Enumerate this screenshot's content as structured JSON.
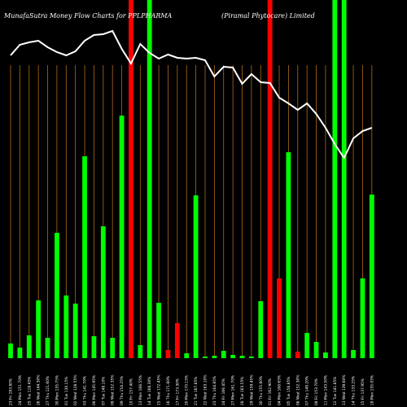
{
  "chart_data": {
    "type": "bar",
    "title_left": "MunafaSutra  Money Flow  Charts for PPLPHARMA",
    "title_right": "(Piramal Phytocare)  Limited",
    "background": "#000000",
    "colors": {
      "up": "#00ff00",
      "down": "#ff0000",
      "line": "#ffffff",
      "grid": "#b26a1a"
    },
    "x_labels": [
      "23 Fri 193.80%",
      "24 Mon 151.70%",
      "25 Tue 118.45%",
      "26 Wed 144.30%",
      "27 Thu 121.60%",
      "30 Mon 135.75%",
      "01 Tue 130.15%",
      "02 Wed 128.55%",
      "03 Thu 141.70%",
      "06 Mon 145.95%",
      "07 Tue 148.10%",
      "08 Wed 152.35%",
      "09 Thu 154.25%",
      "10 Fri 157.40%",
      "13 Mon 168.55%",
      "14 Tue 168.30%",
      "15 Wed 172.45%",
      "16 Thu 171.80%",
      "17 Fri 173.30%",
      "20 Mon 170.15%",
      "21 Tue 167.85%",
      "22 Wed 163.10%",
      "23 Thu 164.85%",
      "24 Fri 166.45%",
      "27 Mon 161.70%",
      "28 Tue 163.55%",
      "29 Wed 159.45%",
      "30 Thu 155.80%",
      "01 Fri 162.90%",
      "04 Mon 168.65%",
      "05 Tue 156.85%",
      "06 Wed 152.30%",
      "07 Thu 149.20%",
      "08 Fri 153.70%",
      "11 Mon 143.50%",
      "12 Tue 141.85%",
      "13 Wed 139.60%",
      "14 Thu 133.25%",
      "15 Fri 137.95%",
      "18 Mon 135.05%"
    ],
    "bar_values": [
      18,
      13,
      28,
      71,
      25,
      154,
      77,
      67,
      248,
      27,
      162,
      25,
      298,
      440,
      16,
      440,
      68,
      10,
      43,
      6,
      200,
      2,
      3,
      9,
      4,
      3,
      2,
      70,
      440,
      98,
      253,
      8,
      31,
      20,
      7,
      440,
      440,
      10,
      98,
      201
    ],
    "bar_colors": [
      "up",
      "up",
      "up",
      "up",
      "up",
      "up",
      "up",
      "up",
      "up",
      "up",
      "up",
      "up",
      "up",
      "down",
      "up",
      "up",
      "up",
      "down",
      "down",
      "up",
      "up",
      "up",
      "up",
      "up",
      "up",
      "up",
      "up",
      "up",
      "down",
      "down",
      "up",
      "down",
      "up",
      "up",
      "up",
      "up",
      "up",
      "up",
      "up",
      "up"
    ],
    "line_values": [
      372,
      385,
      388,
      390,
      382,
      376,
      372,
      377,
      390,
      397,
      398,
      402,
      380,
      362,
      386,
      375,
      368,
      373,
      369,
      368,
      369,
      366,
      346,
      358,
      357,
      337,
      349,
      339,
      338,
      320,
      313,
      305,
      313,
      300,
      283,
      263,
      246,
      270,
      279,
      283
    ],
    "bar_ylim": [
      0,
      440
    ],
    "line_ylim": [
      0,
      440
    ],
    "grid": true
  }
}
